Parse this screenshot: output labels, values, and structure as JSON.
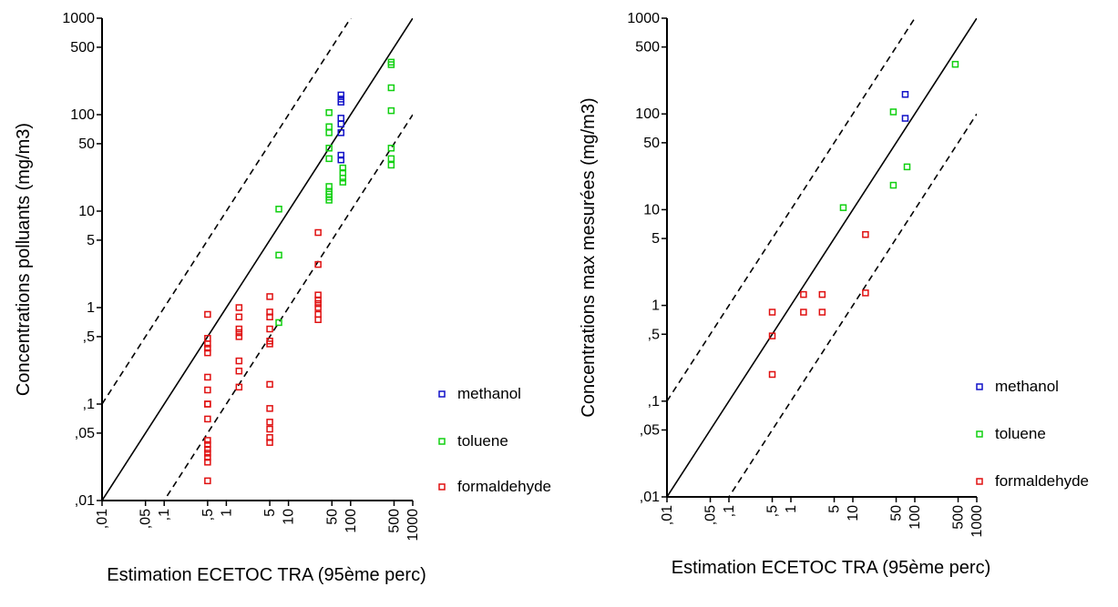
{
  "colors": {
    "methanol": "#1010c8",
    "toluene": "#10d010",
    "formaldehyde": "#e01010"
  },
  "chart_data": [
    {
      "type": "scatter",
      "scale": "log-log",
      "xlabel": "Estimation ECETOC TRA (95ème perc)",
      "ylabel": "Concentrations polluants (mg/m3)",
      "xlim": [
        0.01,
        1000
      ],
      "ylim": [
        0.01,
        1000
      ],
      "x_ticks": [
        {
          "value": 0.01,
          "label": ",01"
        },
        {
          "value": 0.05,
          "label": ",05"
        },
        {
          "value": 0.1,
          "label": ",1"
        },
        {
          "value": 0.5,
          "label": ",5"
        },
        {
          "value": 1,
          "label": "1"
        },
        {
          "value": 5,
          "label": "5"
        },
        {
          "value": 10,
          "label": "10"
        },
        {
          "value": 50,
          "label": "50"
        },
        {
          "value": 100,
          "label": "100"
        },
        {
          "value": 500,
          "label": "500"
        },
        {
          "value": 1000,
          "label": "1000"
        }
      ],
      "y_ticks": [
        {
          "value": 0.01,
          "label": ",01"
        },
        {
          "value": 0.05,
          "label": ",05"
        },
        {
          "value": 0.1,
          "label": ",1"
        },
        {
          "value": 0.5,
          "label": ",5"
        },
        {
          "value": 1,
          "label": "1"
        },
        {
          "value": 5,
          "label": "5"
        },
        {
          "value": 10,
          "label": "10"
        },
        {
          "value": 50,
          "label": "50"
        },
        {
          "value": 100,
          "label": "100"
        },
        {
          "value": 500,
          "label": "500"
        },
        {
          "value": 1000,
          "label": "1000"
        }
      ],
      "reference_lines": [
        {
          "style": "solid",
          "ratio": 1
        },
        {
          "style": "dashed",
          "ratio": 10
        },
        {
          "style": "dashed",
          "ratio": 0.1
        }
      ],
      "legend_position": "right",
      "series": [
        {
          "name": "methanol",
          "points": [
            [
              70,
              160
            ],
            [
              70,
              145
            ],
            [
              70,
              135
            ],
            [
              70,
              92
            ],
            [
              70,
              80
            ],
            [
              70,
              65
            ],
            [
              70,
              38
            ],
            [
              70,
              34
            ]
          ]
        },
        {
          "name": "toluene",
          "points": [
            [
              7,
              10.5
            ],
            [
              7,
              3.5
            ],
            [
              7,
              0.7
            ],
            [
              45,
              105
            ],
            [
              45,
              75
            ],
            [
              45,
              65
            ],
            [
              45,
              45
            ],
            [
              45,
              35
            ],
            [
              45,
              18
            ],
            [
              45,
              16
            ],
            [
              45,
              15
            ],
            [
              45,
              14
            ],
            [
              45,
              13
            ],
            [
              75,
              28
            ],
            [
              75,
              25
            ],
            [
              75,
              22
            ],
            [
              75,
              20
            ],
            [
              450,
              350
            ],
            [
              450,
              330
            ],
            [
              450,
              190
            ],
            [
              450,
              110
            ],
            [
              450,
              45
            ],
            [
              450,
              35
            ],
            [
              450,
              30
            ]
          ]
        },
        {
          "name": "formaldehyde",
          "points": [
            [
              0.5,
              0.85
            ],
            [
              0.5,
              0.48
            ],
            [
              0.5,
              0.42
            ],
            [
              0.5,
              0.38
            ],
            [
              0.5,
              0.34
            ],
            [
              0.5,
              0.19
            ],
            [
              0.5,
              0.14
            ],
            [
              0.5,
              0.1
            ],
            [
              0.5,
              0.1
            ],
            [
              0.5,
              0.07
            ],
            [
              0.5,
              0.042
            ],
            [
              0.5,
              0.038
            ],
            [
              0.5,
              0.034
            ],
            [
              0.5,
              0.031
            ],
            [
              0.5,
              0.028
            ],
            [
              0.5,
              0.025
            ],
            [
              0.5,
              0.016
            ],
            [
              1.6,
              1.0
            ],
            [
              1.6,
              0.8
            ],
            [
              1.6,
              0.6
            ],
            [
              1.6,
              0.55
            ],
            [
              1.6,
              0.5
            ],
            [
              1.6,
              0.28
            ],
            [
              1.6,
              0.22
            ],
            [
              1.6,
              0.15
            ],
            [
              5,
              1.3
            ],
            [
              5,
              0.9
            ],
            [
              5,
              0.8
            ],
            [
              5,
              0.6
            ],
            [
              5,
              0.45
            ],
            [
              5,
              0.42
            ],
            [
              5,
              0.16
            ],
            [
              5,
              0.09
            ],
            [
              5,
              0.065
            ],
            [
              5,
              0.055
            ],
            [
              5,
              0.045
            ],
            [
              5,
              0.04
            ],
            [
              30,
              6
            ],
            [
              30,
              2.8
            ],
            [
              30,
              1.35
            ],
            [
              30,
              1.2
            ],
            [
              30,
              1.1
            ],
            [
              30,
              1.0
            ],
            [
              30,
              0.85
            ],
            [
              30,
              0.75
            ]
          ]
        }
      ]
    },
    {
      "type": "scatter",
      "scale": "log-log",
      "xlabel": "Estimation ECETOC TRA (95ème perc)",
      "ylabel": "Concentrations max mesurées (mg/m3)",
      "xlim": [
        0.01,
        1000
      ],
      "ylim": [
        0.01,
        1000
      ],
      "x_ticks": [
        {
          "value": 0.01,
          "label": ",01"
        },
        {
          "value": 0.05,
          "label": ",05"
        },
        {
          "value": 0.1,
          "label": ",1"
        },
        {
          "value": 0.5,
          "label": ",5"
        },
        {
          "value": 1,
          "label": "1"
        },
        {
          "value": 5,
          "label": "5"
        },
        {
          "value": 10,
          "label": "10"
        },
        {
          "value": 50,
          "label": "50"
        },
        {
          "value": 100,
          "label": "100"
        },
        {
          "value": 500,
          "label": "500"
        },
        {
          "value": 1000,
          "label": "1000"
        }
      ],
      "y_ticks": [
        {
          "value": 0.01,
          "label": ",01"
        },
        {
          "value": 0.05,
          "label": ",05"
        },
        {
          "value": 0.1,
          "label": ",1"
        },
        {
          "value": 0.5,
          "label": ",5"
        },
        {
          "value": 1,
          "label": "1"
        },
        {
          "value": 5,
          "label": "5"
        },
        {
          "value": 10,
          "label": "10"
        },
        {
          "value": 50,
          "label": "50"
        },
        {
          "value": 100,
          "label": "100"
        },
        {
          "value": 500,
          "label": "500"
        },
        {
          "value": 1000,
          "label": "1000"
        }
      ],
      "reference_lines": [
        {
          "style": "solid",
          "ratio": 1
        },
        {
          "style": "dashed",
          "ratio": 10
        },
        {
          "style": "dashed",
          "ratio": 0.1
        }
      ],
      "legend_position": "right",
      "series": [
        {
          "name": "methanol",
          "points": [
            [
              70,
              160
            ],
            [
              70,
              90
            ]
          ]
        },
        {
          "name": "toluene",
          "points": [
            [
              7,
              10.5
            ],
            [
              45,
              105
            ],
            [
              45,
              18
            ],
            [
              75,
              28
            ],
            [
              450,
              330
            ]
          ]
        },
        {
          "name": "formaldehyde",
          "points": [
            [
              0.5,
              0.85
            ],
            [
              0.5,
              0.48
            ],
            [
              0.5,
              0.19
            ],
            [
              1.6,
              1.3
            ],
            [
              1.6,
              0.85
            ],
            [
              3.2,
              1.3
            ],
            [
              3.2,
              0.85
            ],
            [
              16,
              5.5
            ],
            [
              16,
              1.35
            ]
          ]
        }
      ]
    }
  ]
}
